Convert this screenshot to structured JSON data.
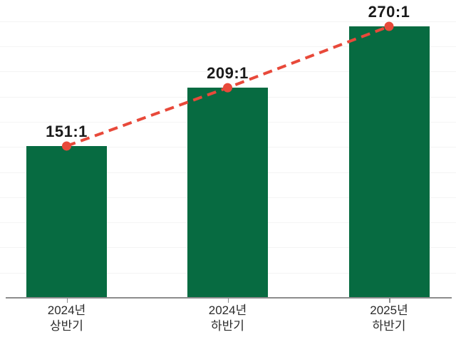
{
  "chart_data": {
    "type": "bar",
    "title": "",
    "xlabel": "",
    "ylabel": "",
    "categories": [
      "2024년 상반기",
      "2024년 하반기",
      "2025년 하반기"
    ],
    "category_lines": [
      [
        "2024년",
        "상반기"
      ],
      [
        "2024년",
        "하반기"
      ],
      [
        "2025년",
        "하반기"
      ]
    ],
    "values": [
      151,
      209,
      270
    ],
    "value_labels": [
      "151:1",
      "209:1",
      "270:1"
    ],
    "series_note": "single series of competition ratios with dashed trend line overlay connecting bar tops",
    "ylim": [
      0,
      296
    ],
    "grid": "faint horizontal gridlines, no y-axis labels",
    "legend": "none",
    "colors": {
      "bar": "#076b41",
      "trend_line": "#e8493a",
      "marker": "#e8493a",
      "value_label_text": "#1a1a1a",
      "category_label_text": "#2b2b2b",
      "axis": "#8c8c8c",
      "gridline": "#f4f4f4",
      "background": "#ffffff"
    }
  }
}
